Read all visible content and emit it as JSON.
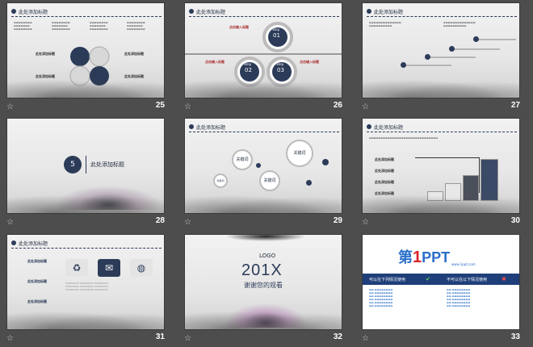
{
  "slides": [
    {
      "num": "25",
      "title": "此处添加标题",
      "label": "此处添加标题"
    },
    {
      "num": "26",
      "title": "此处添加标题",
      "step1_word": "Step",
      "step1_num": "01",
      "step2_word": "Step",
      "step2_num": "02",
      "step3_word": "Step",
      "step3_num": "03",
      "label": "点击输入标题"
    },
    {
      "num": "27",
      "title": "此处添加标题"
    },
    {
      "num": "28",
      "section_num": "5",
      "section_title": "此处添加标题"
    },
    {
      "num": "29",
      "title": "此处添加标题",
      "kw1": "关键词",
      "kw2": "关键词",
      "kw3": "关键词",
      "kw4": "关键词"
    },
    {
      "num": "30",
      "title": "此处添加标题",
      "label": "此处添加标题"
    },
    {
      "num": "31",
      "title": "此处添加标题",
      "label": "此处添加标题"
    },
    {
      "num": "32",
      "logo": "LOGO",
      "year": "201X",
      "thanks": "谢谢您的观看"
    },
    {
      "num": "33",
      "brand_a": "第",
      "brand_num": "1",
      "brand_b": "PPT",
      "url": "www.1ppt.com",
      "left_head": "可以在下列情况使用",
      "right_head": "不可以在以下情况使用"
    }
  ],
  "colors": {
    "navy": "#2b3b58",
    "bg": "#4d4d4d",
    "brand_blue": "#2a6fc9",
    "brand_red": "#d9232a"
  }
}
